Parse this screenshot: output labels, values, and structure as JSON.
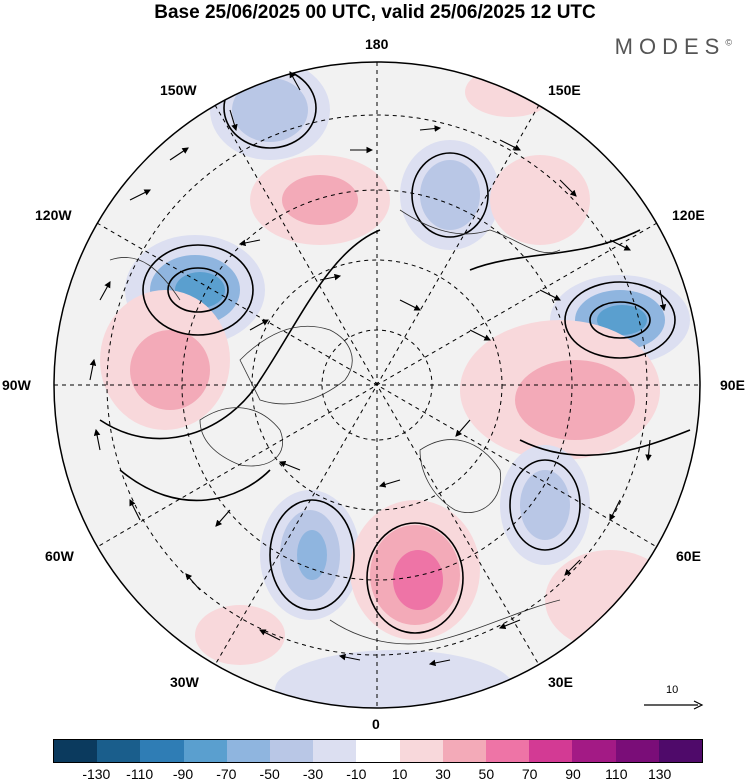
{
  "title": "Base 25/06/2025 00 UTC, valid 25/06/2025 12 UTC",
  "brand": "MODES",
  "brand_mark": "©",
  "longitude_labels": {
    "top": "180",
    "bottom": "0",
    "left": "90W",
    "right": "90E",
    "upper_left_1": "150W",
    "upper_left_2": "120W",
    "upper_right_1": "150E",
    "upper_right_2": "120E",
    "lower_left_1": "60W",
    "lower_left_2": "30W",
    "lower_right_1": "60E",
    "lower_right_2": "30E"
  },
  "vector_scale_label": "10",
  "colorbar": {
    "colors": [
      "#0b3a5e",
      "#1a5e8c",
      "#2f7db5",
      "#5a9fcf",
      "#8fb5df",
      "#b9c7e6",
      "#dcdff1",
      "#ffffff",
      "#f8d8db",
      "#f3aab8",
      "#ee74a6",
      "#d33a94",
      "#a31a85",
      "#7a0d78",
      "#4f0a6a"
    ],
    "tick_labels": [
      "-130",
      "-110",
      "-90",
      "-70",
      "-50",
      "-30",
      "-10",
      "10",
      "30",
      "50",
      "70",
      "90",
      "110",
      "130"
    ]
  },
  "anomaly_features": [
    {
      "kind": "negative",
      "color": "#8fb5df"
    },
    {
      "kind": "negative",
      "color": "#5a9fcf"
    },
    {
      "kind": "positive",
      "color": "#f3aab8"
    },
    {
      "kind": "positive",
      "color": "#ee74a6"
    }
  ]
}
